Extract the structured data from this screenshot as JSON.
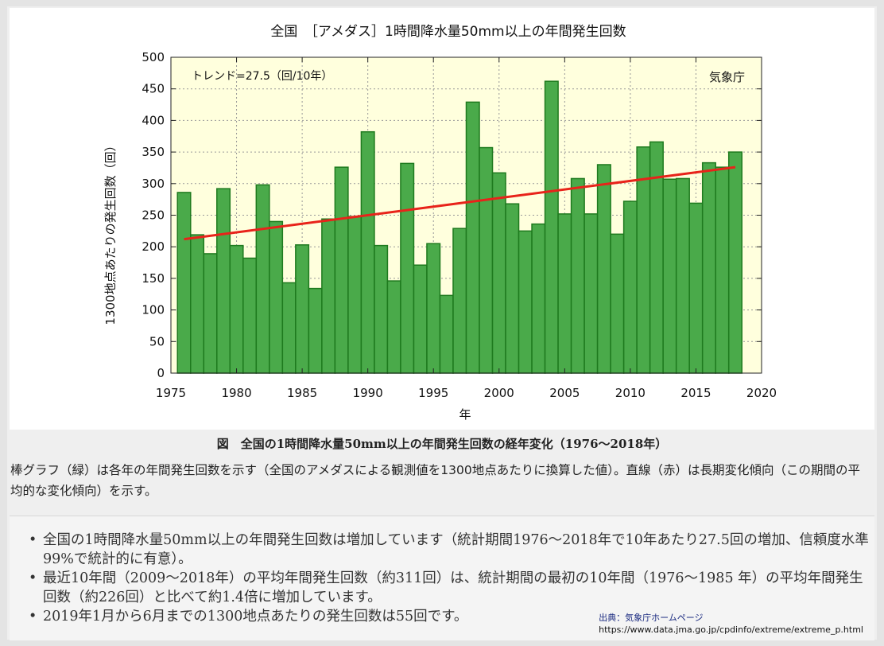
{
  "chart_data": {
    "type": "bar",
    "title": "全国　［アメダス］1時間降水量50mm以上の年間発生回数",
    "xlabel": "年",
    "ylabel": "1300地点あたりの発生回数（回）",
    "trend_label": "トレンド=27.5（回/10年）",
    "agency_label": "気象庁",
    "xlim": [
      1975,
      2020
    ],
    "ylim": [
      0,
      500
    ],
    "x_ticks": [
      1975,
      1980,
      1985,
      1990,
      1995,
      2000,
      2005,
      2010,
      2015,
      2020
    ],
    "y_ticks": [
      0,
      50,
      100,
      150,
      200,
      250,
      300,
      350,
      400,
      450,
      500
    ],
    "grid": true,
    "bar_color": "#4aaa4a",
    "bar_edge_color": "#1e7a1e",
    "trend_color": "#e8231a",
    "plot_bg": "#ffffdd",
    "x": [
      1976,
      1977,
      1978,
      1979,
      1980,
      1981,
      1982,
      1983,
      1984,
      1985,
      1986,
      1987,
      1988,
      1989,
      1990,
      1991,
      1992,
      1993,
      1994,
      1995,
      1996,
      1997,
      1998,
      1999,
      2000,
      2001,
      2002,
      2003,
      2004,
      2005,
      2006,
      2007,
      2008,
      2009,
      2010,
      2011,
      2012,
      2013,
      2014,
      2015,
      2016,
      2017,
      2018
    ],
    "values": [
      286,
      219,
      189,
      292,
      202,
      182,
      298,
      240,
      143,
      203,
      134,
      244,
      326,
      248,
      382,
      202,
      146,
      332,
      171,
      205,
      123,
      229,
      429,
      357,
      317,
      268,
      225,
      236,
      462,
      252,
      308,
      252,
      330,
      220,
      272,
      358,
      366,
      307,
      308,
      269,
      333,
      326,
      350
    ],
    "trend": {
      "start": [
        1976,
        212
      ],
      "end": [
        2018,
        326
      ]
    }
  },
  "caption": "図　全国の1時間降水量50mm以上の年間発生回数の経年変化（1976～2018年）",
  "description": "棒グラフ（緑）は各年の年間発生回数を示す（全国のアメダスによる観測値を1300地点あたりに換算した値）。直線（赤）は長期変化傾向（この期間の平均的な変化傾向）を示す。",
  "summary": [
    "全国の1時間降水量50mm以上の年間発生回数は増加しています（統計期間1976～2018年で10年あたり27.5回の増加、信頼度水準99%で統計的に有意）。",
    "最近10年間（2009～2018年）の平均年間発生回数（約311回）は、統計期間の最初の10年間（1976～1985 年）の平均年間発生回数（約226回）と比べて約1.4倍に増加しています。",
    "2019年1月から6月までの1300地点あたりの発生回数は55回です。"
  ],
  "source": {
    "label": "出典：気象庁ホームページ",
    "url": "https://www.data.jma.go.jp/cpdinfo/extreme/extreme_p.html"
  }
}
